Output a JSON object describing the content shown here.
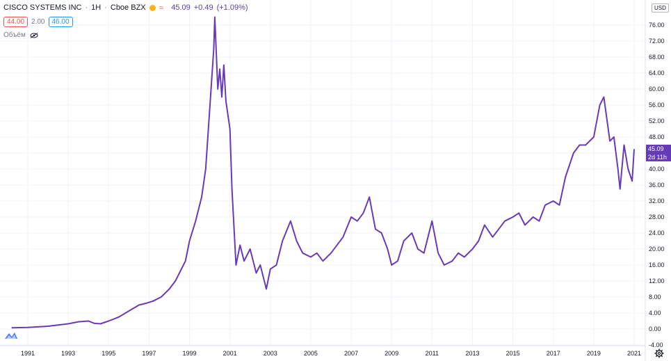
{
  "header": {
    "symbol": "CISCO SYSTEMS INC",
    "interval": "1H",
    "exchange": "Cboe BZX",
    "last": "45.09",
    "change": "+0.49",
    "change_pct": "(+1.09%)"
  },
  "quote": {
    "bid": "44.00",
    "spread": "2.00",
    "ask": "46.00"
  },
  "volume_label": "Объём",
  "currency": "USD",
  "price_tag": {
    "price": "45.09",
    "countdown": "2d 11h"
  },
  "colors": {
    "line": "#673ab7",
    "grid": "#f0f3fa",
    "axis_text": "#131722"
  },
  "icons": [
    "sun-icon",
    "wave-icon",
    "eye-off-icon",
    "tradingview-logo-icon",
    "gear-icon"
  ],
  "chart_data": {
    "type": "line",
    "title": "",
    "xlabel": "",
    "ylabel": "",
    "x_ticks": [
      "1991",
      "1993",
      "1995",
      "1997",
      "1999",
      "2001",
      "2003",
      "2005",
      "2007",
      "2009",
      "2011",
      "2013",
      "2015",
      "2017",
      "2019",
      "2021"
    ],
    "y_ticks": [
      "-4.00",
      "0.00",
      "4.00",
      "8.00",
      "12.00",
      "16.00",
      "20.00",
      "24.00",
      "28.00",
      "32.00",
      "36.00",
      "40.00",
      "44.00",
      "48.00",
      "52.00",
      "56.00",
      "60.00",
      "64.00",
      "68.00",
      "72.00",
      "76.00"
    ],
    "xlim": [
      1990.0,
      2021.6
    ],
    "ylim": [
      -4,
      80
    ],
    "grid": true,
    "series": [
      {
        "x": [
          1990.2,
          1991.0,
          1992.0,
          1992.5,
          1993.0,
          1993.5,
          1994.0,
          1994.3,
          1994.6,
          1995.0,
          1995.5,
          1996.0,
          1996.5,
          1996.9,
          1997.2,
          1997.6,
          1998.0,
          1998.3,
          1998.5,
          1998.8,
          1999.0,
          1999.3,
          1999.6,
          1999.8,
          2000.0,
          2000.2,
          2000.25,
          2000.4,
          2000.5,
          2000.6,
          2000.7,
          2000.8,
          2001.0,
          2001.1,
          2001.3,
          2001.5,
          2001.7,
          2002.0,
          2002.3,
          2002.5,
          2002.8,
          2003.0,
          2003.3,
          2003.6,
          2004.0,
          2004.3,
          2004.6,
          2005.0,
          2005.3,
          2005.6,
          2006.0,
          2006.3,
          2006.6,
          2007.0,
          2007.3,
          2007.6,
          2007.9,
          2008.2,
          2008.5,
          2008.8,
          2009.0,
          2009.3,
          2009.6,
          2010.0,
          2010.3,
          2010.6,
          2011.0,
          2011.3,
          2011.6,
          2012.0,
          2012.3,
          2012.6,
          2013.0,
          2013.3,
          2013.6,
          2014.0,
          2014.3,
          2014.6,
          2015.0,
          2015.3,
          2015.6,
          2016.0,
          2016.3,
          2016.6,
          2017.0,
          2017.3,
          2017.6,
          2018.0,
          2018.3,
          2018.6,
          2019.0,
          2019.3,
          2019.5,
          2019.8,
          2020.0,
          2020.2,
          2020.3,
          2020.5,
          2020.7,
          2020.9,
          2021.0
        ],
        "values": [
          0.3,
          0.4,
          0.7,
          1.0,
          1.3,
          1.8,
          2.0,
          1.4,
          1.3,
          2.0,
          3.0,
          4.5,
          6.0,
          6.5,
          7.0,
          8.0,
          10.0,
          12.0,
          14.0,
          17.0,
          22.0,
          27.0,
          33.0,
          40.0,
          55.0,
          70.0,
          78.0,
          60.0,
          65.0,
          58.0,
          66.0,
          57.0,
          50.0,
          35.0,
          16.0,
          21.0,
          17.0,
          20.0,
          14.0,
          16.0,
          10.0,
          15.0,
          16.0,
          22.0,
          27.0,
          22.0,
          19.0,
          18.0,
          19.0,
          17.0,
          19.0,
          21.0,
          23.0,
          28.0,
          27.0,
          29.0,
          33.0,
          25.0,
          24.0,
          20.0,
          16.0,
          17.0,
          22.0,
          24.0,
          20.0,
          19.0,
          27.0,
          19.0,
          16.0,
          17.0,
          19.0,
          18.0,
          20.0,
          22.0,
          26.0,
          23.0,
          25.0,
          27.0,
          28.0,
          29.0,
          26.0,
          28.0,
          27.0,
          31.0,
          32.0,
          31.0,
          38.0,
          44.0,
          46.0,
          46.0,
          48.0,
          56.0,
          58.0,
          47.0,
          48.0,
          40.0,
          35.0,
          46.0,
          40.0,
          37.0,
          45.0
        ]
      }
    ]
  }
}
